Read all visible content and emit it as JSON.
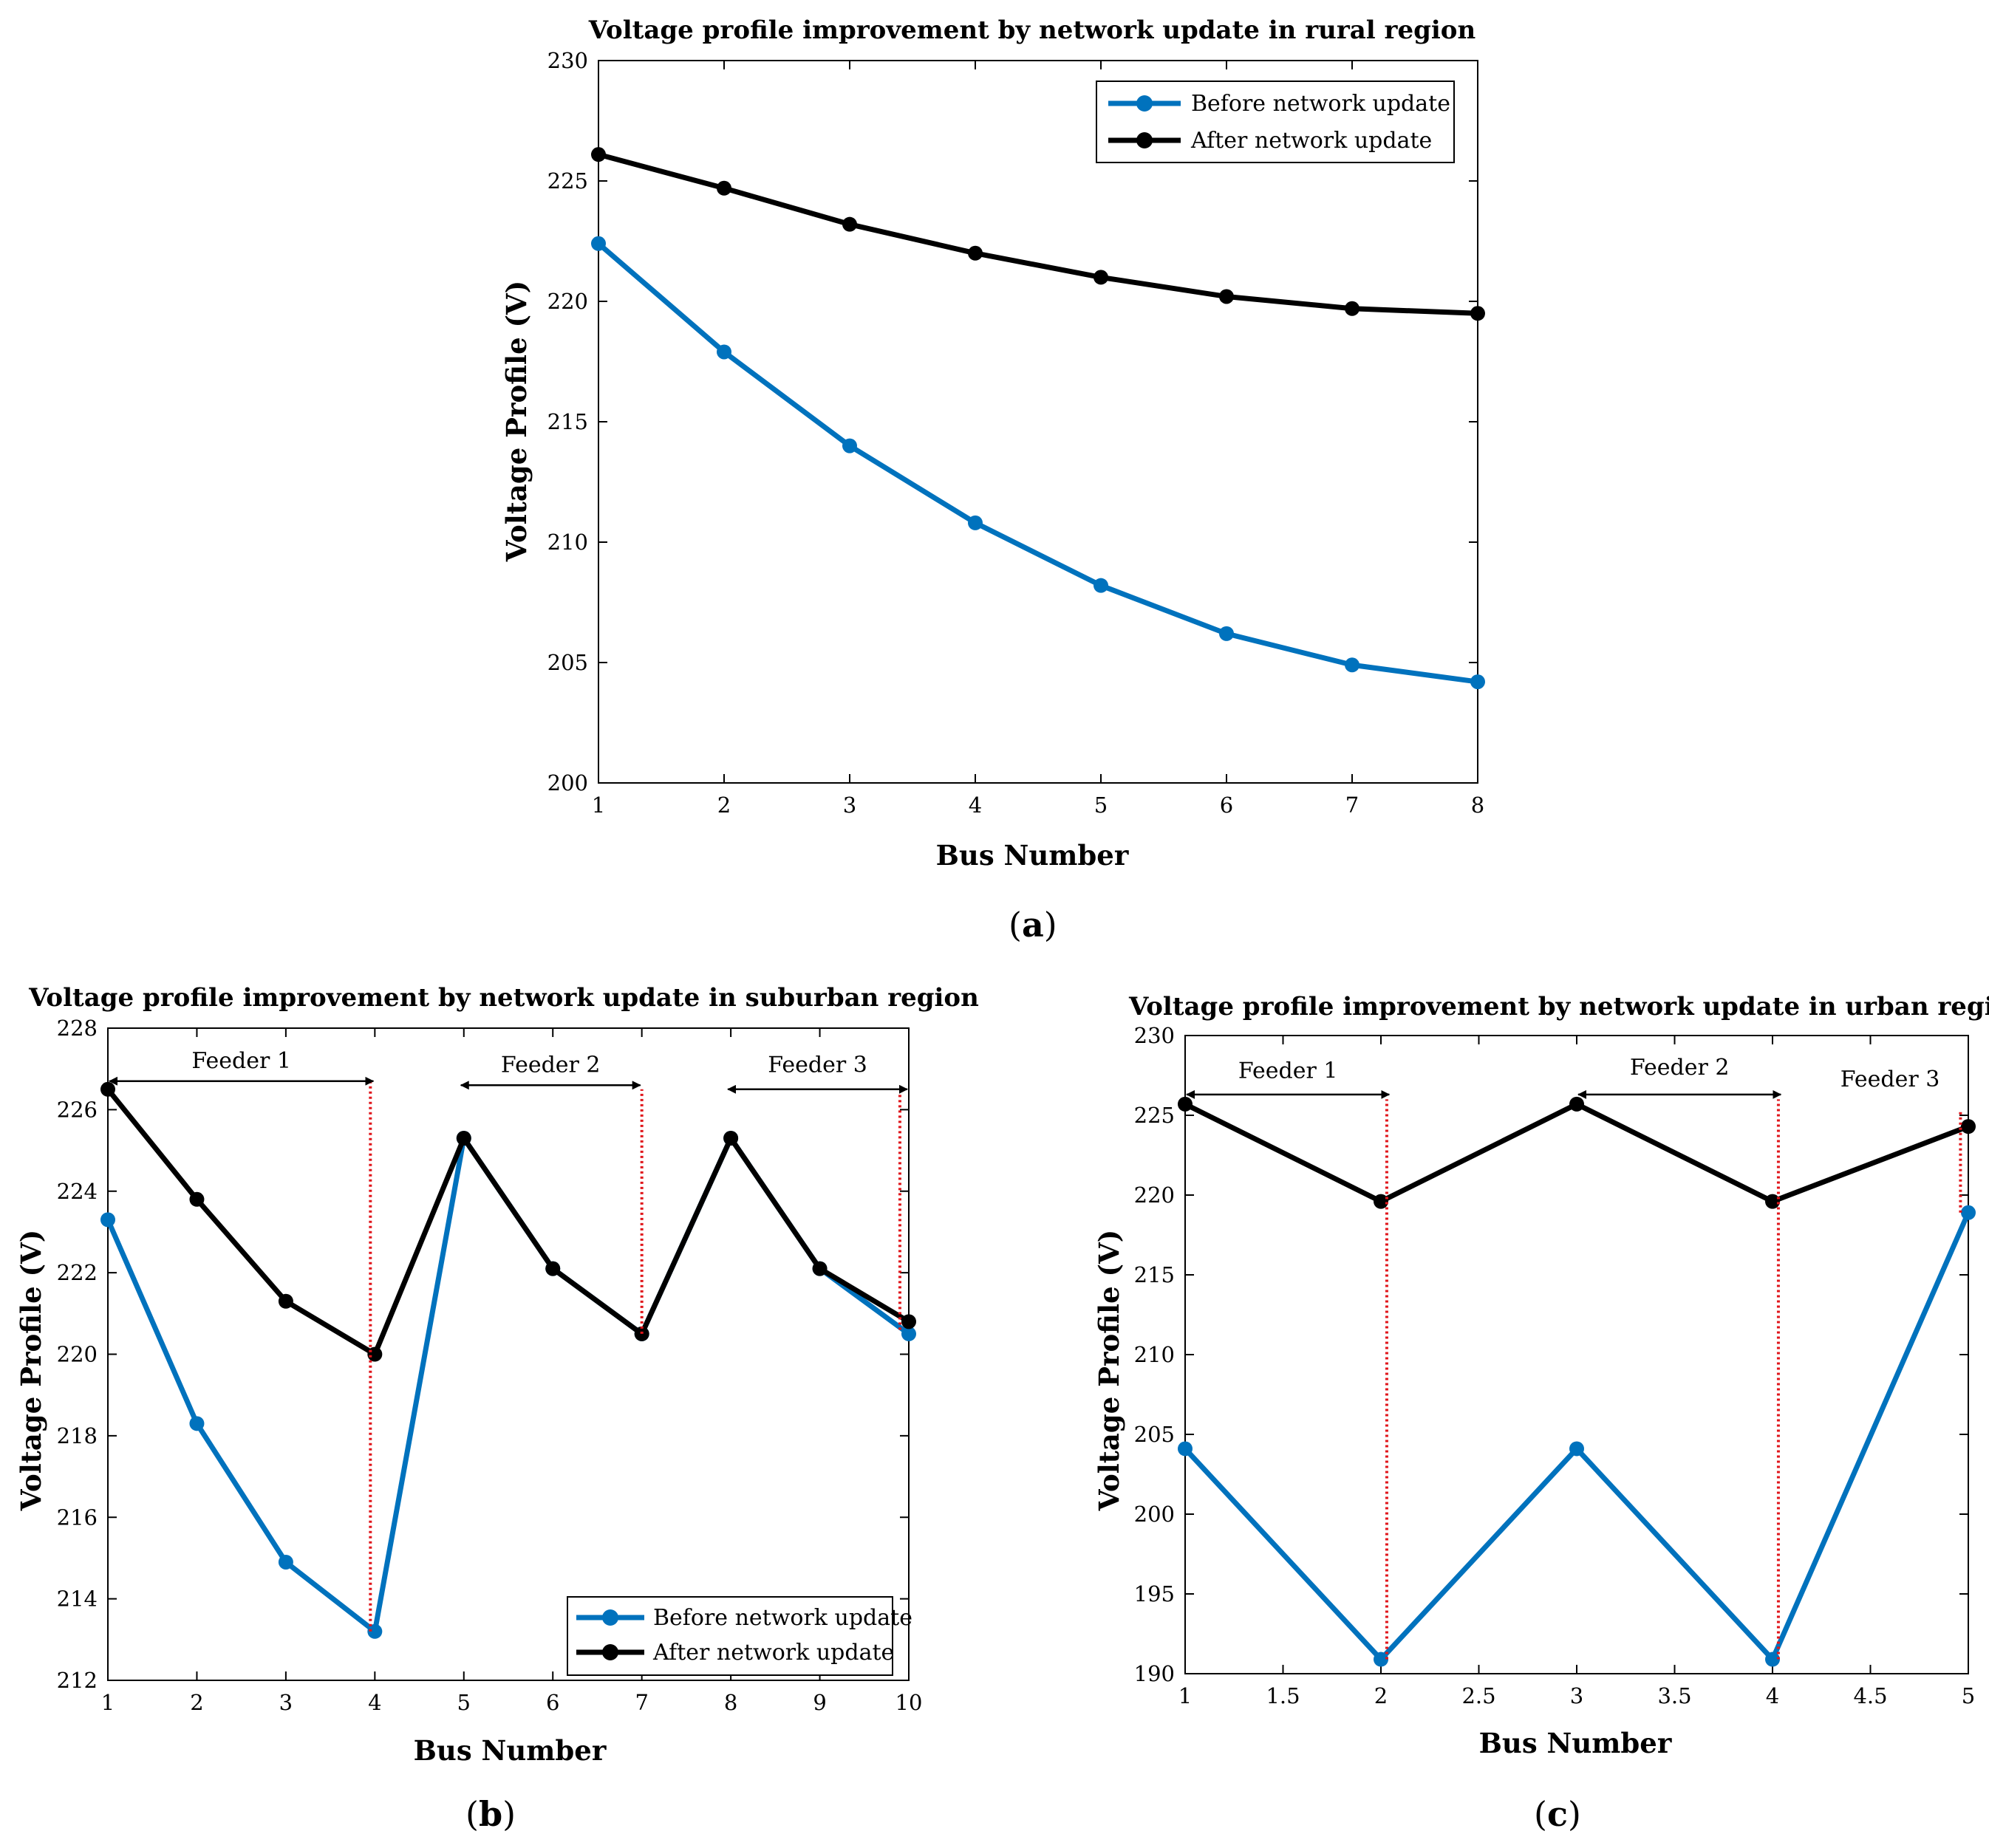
{
  "colors": {
    "before": "#0072BD",
    "after": "#000000",
    "feeder_marker": "#E0161B",
    "arrow": "#000000"
  },
  "chart_data": [
    {
      "panel": "(a)",
      "panel_letter": "a",
      "type": "line",
      "title": "Voltage profile improvement by network update in rural region",
      "xlabel": "Bus Number",
      "ylabel": "Voltage Profile (V)",
      "xlim": [
        1,
        8
      ],
      "ylim": [
        200,
        230
      ],
      "xticks": [
        1,
        2,
        3,
        4,
        5,
        6,
        7,
        8
      ],
      "xticklabels": [
        "1",
        "2",
        "3",
        "4",
        "5",
        "6",
        "7",
        "8"
      ],
      "yticks": [
        200,
        205,
        210,
        215,
        220,
        225,
        230
      ],
      "yticklabels": [
        "200",
        "205",
        "210",
        "215",
        "220",
        "225",
        "230"
      ],
      "legend": "top-right",
      "grid": false,
      "x": [
        1,
        2,
        3,
        4,
        5,
        6,
        7,
        8
      ],
      "series": [
        {
          "name": "Before network update",
          "key": "before",
          "values": [
            222.4,
            217.9,
            214.0,
            210.8,
            208.2,
            206.2,
            204.9,
            204.2
          ]
        },
        {
          "name": "After network update",
          "key": "after",
          "values": [
            226.1,
            224.7,
            223.2,
            222.0,
            221.0,
            220.2,
            219.7,
            219.5
          ]
        }
      ],
      "feeder_lines": [],
      "feeder_arrows": []
    },
    {
      "panel": "(b)",
      "panel_letter": "b",
      "type": "line",
      "title": "Voltage profile improvement by network update in suburban region",
      "xlabel": "Bus Number",
      "ylabel": "Voltage Profile (V)",
      "xlim": [
        1,
        10
      ],
      "ylim": [
        212,
        228
      ],
      "xticks": [
        1,
        2,
        3,
        4,
        5,
        6,
        7,
        8,
        9,
        10
      ],
      "xticklabels": [
        "1",
        "2",
        "3",
        "4",
        "5",
        "6",
        "7",
        "8",
        "9",
        "10"
      ],
      "yticks": [
        212,
        214,
        216,
        218,
        220,
        222,
        224,
        226,
        228
      ],
      "yticklabels": [
        "212",
        "214",
        "216",
        "218",
        "220",
        "222",
        "224",
        "226",
        "228"
      ],
      "legend": "bottom-right",
      "grid": false,
      "x": [
        1,
        2,
        3,
        4,
        5,
        6,
        7,
        8,
        9,
        10
      ],
      "series": [
        {
          "name": "Before network update",
          "key": "before",
          "values": [
            223.3,
            218.3,
            214.9,
            213.2,
            225.3,
            222.1,
            220.5,
            225.3,
            222.1,
            220.5
          ]
        },
        {
          "name": "After network update",
          "key": "after",
          "values": [
            226.5,
            223.8,
            221.3,
            220.0,
            225.3,
            222.1,
            220.5,
            225.3,
            222.1,
            220.8
          ]
        }
      ],
      "feeder_lines": [
        {
          "x": 3.95,
          "y_from": 213.2,
          "y_to": 226.7
        },
        {
          "x": 7.0,
          "y_from": 220.5,
          "y_to": 226.5
        },
        {
          "x": 9.9,
          "y_from": 220.6,
          "y_to": 226.4
        }
      ],
      "feeder_arrows": [
        {
          "label": "Feeder 1",
          "x_from": 1.0,
          "x_to": 4.0,
          "y": 226.7,
          "label_y": 227.2
        },
        {
          "label": "Feeder 2",
          "x_from": 4.95,
          "x_to": 7.0,
          "y": 226.6,
          "label_y": 227.1
        },
        {
          "label": "Feeder 3",
          "x_from": 7.95,
          "x_to": 10.0,
          "y": 226.5,
          "label_y": 227.1
        }
      ]
    },
    {
      "panel": "(c)",
      "panel_letter": "c",
      "type": "line",
      "title": "Voltage profile improvement by network update in urban region",
      "xlabel": "Bus Number",
      "ylabel": "Voltage Profile (V)",
      "xlim": [
        1,
        5
      ],
      "ylim": [
        190,
        230
      ],
      "xticks": [
        1,
        1.5,
        2,
        2.5,
        3,
        3.5,
        4,
        4.5,
        5
      ],
      "xticklabels": [
        "1",
        "1.5",
        "2",
        "2.5",
        "3",
        "3.5",
        "4",
        "4.5",
        "5"
      ],
      "yticks": [
        190,
        195,
        200,
        205,
        210,
        215,
        220,
        225,
        230
      ],
      "yticklabels": [
        "190",
        "195",
        "200",
        "205",
        "210",
        "215",
        "220",
        "225",
        "230"
      ],
      "legend": "none",
      "grid": false,
      "x": [
        1,
        2,
        3,
        4,
        5
      ],
      "series": [
        {
          "name": "Before network update",
          "key": "before",
          "values": [
            204.1,
            190.9,
            204.1,
            190.9,
            218.9
          ]
        },
        {
          "name": "After network update",
          "key": "after",
          "values": [
            225.7,
            219.6,
            225.7,
            219.6,
            224.3
          ]
        }
      ],
      "feeder_lines": [
        {
          "x": 2.03,
          "y_from": 190.9,
          "y_to": 226.0
        },
        {
          "x": 4.03,
          "y_from": 190.9,
          "y_to": 226.0
        },
        {
          "x": 4.96,
          "y_from": 218.9,
          "y_to": 225.2
        }
      ],
      "feeder_arrows": [
        {
          "label": "Feeder 1",
          "x_from": 1.0,
          "x_to": 2.05,
          "y": 226.3,
          "label_y": 227.8
        },
        {
          "label": "Feeder 2",
          "x_from": 3.0,
          "x_to": 4.05,
          "y": 226.3,
          "label_y": 228.0
        }
      ],
      "feeder_labels": [
        {
          "label": "Feeder 3",
          "x": 4.6,
          "y": 226.8
        }
      ]
    }
  ]
}
